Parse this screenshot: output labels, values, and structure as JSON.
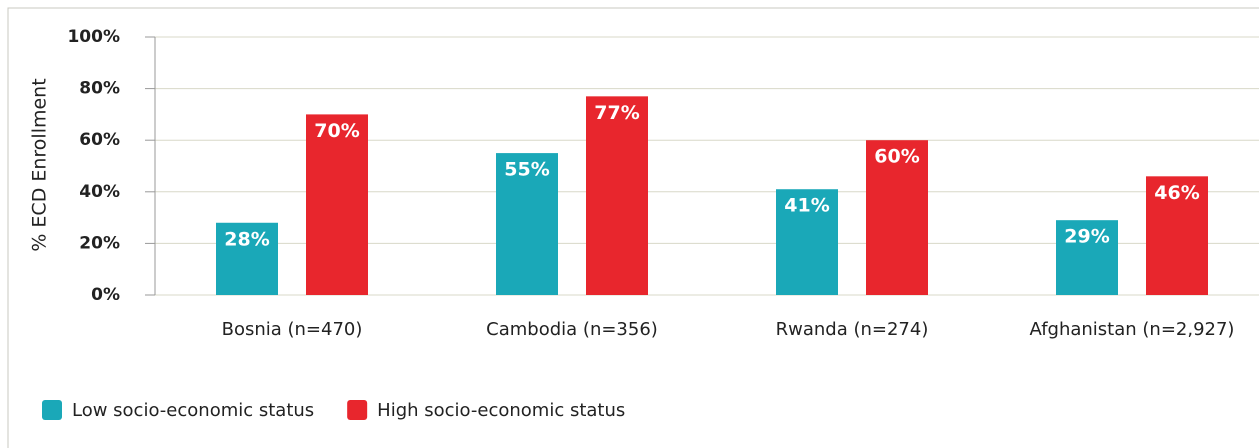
{
  "chart_data": {
    "type": "bar",
    "ylabel": "% ECD Enrollment",
    "categories": [
      "Bosnia (n=470)",
      "Cambodia (n=356)",
      "Rwanda (n=274)",
      "Afghanistan (n=2,927)"
    ],
    "series": [
      {
        "name": "Low socio-economic status",
        "color": "#1aa8b8",
        "values": [
          28,
          55,
          41,
          29
        ],
        "value_labels": [
          "28%",
          "55%",
          "41%",
          "29%"
        ]
      },
      {
        "name": "High socio-economic status",
        "color": "#e8262d",
        "values": [
          70,
          77,
          60,
          46
        ],
        "value_labels": [
          "70%",
          "77%",
          "60%",
          "46%"
        ]
      }
    ],
    "ylim": [
      0,
      100
    ],
    "yticks": [
      {
        "value": 0,
        "label": "0%"
      },
      {
        "value": 20,
        "label": "20%"
      },
      {
        "value": 40,
        "label": "40%"
      },
      {
        "value": 60,
        "label": "60%"
      },
      {
        "value": 80,
        "label": "80%"
      },
      {
        "value": 100,
        "label": "100%"
      }
    ],
    "grid": true,
    "legend": "bottom-left"
  }
}
